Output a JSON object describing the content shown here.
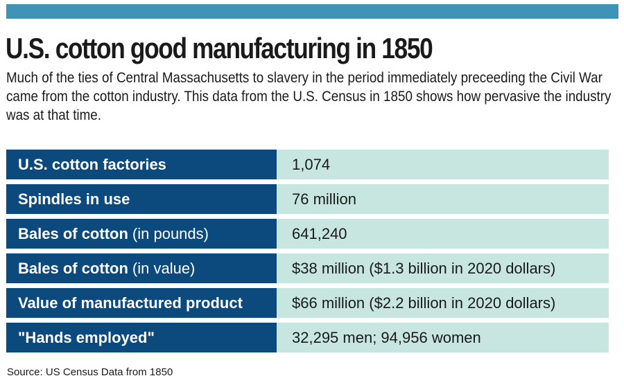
{
  "colors": {
    "top_bar": "#3f93b5",
    "label_bg": "#0c4a7d",
    "value_bg": "#c8e6e0",
    "text": "#1a1a1a"
  },
  "header": {
    "title": "U.S. cotton good manufacturing in 1850",
    "intro": "Much of the ties of Central Massachusetts to slavery in the period immediately preceeding the Civil War came from the cotton industry. This data from the U.S. Census in 1850 shows how pervasive the industry was at that time."
  },
  "table": {
    "rows": [
      {
        "label": "U.S. cotton factories",
        "sub": "",
        "value": "1,074"
      },
      {
        "label": "Spindles in use",
        "sub": "",
        "value": "76 million"
      },
      {
        "label": "Bales of cotton",
        "sub": "(in pounds)",
        "value": "641,240"
      },
      {
        "label": "Bales of cotton",
        "sub": "(in value)",
        "value": "$38 million ($1.3 billion in 2020 dollars)"
      },
      {
        "label": "Value of manufactured product",
        "sub": "",
        "value": "$66 million ($2.2 billion in 2020 dollars)"
      },
      {
        "label": "\"Hands employed\"",
        "sub": "",
        "value": "32,295 men; 94,956 women"
      }
    ]
  },
  "footer": {
    "source": "Source: US Census Data from 1850"
  }
}
